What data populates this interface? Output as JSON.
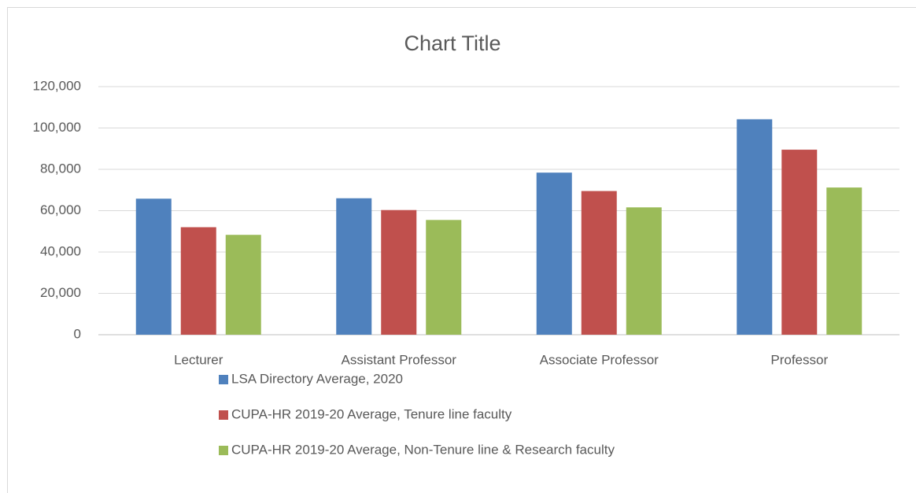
{
  "chart_data": {
    "type": "bar",
    "title": "Chart Title",
    "categories": [
      "Lecturer",
      "Assistant Professor",
      "Associate Professor",
      "Professor"
    ],
    "series": [
      {
        "name": "LSA Directory Average, 2020",
        "color": "#4f81bd",
        "values": [
          65800,
          66000,
          78400,
          104200
        ]
      },
      {
        "name": "CUPA-HR 2019-20 Average, Tenure line faculty",
        "color": "#c0504d",
        "values": [
          52000,
          60300,
          69500,
          89500
        ]
      },
      {
        "name": "CUPA-HR 2019-20 Average, Non-Tenure line & Research faculty",
        "color": "#9bbb59",
        "values": [
          48300,
          55500,
          61600,
          71200
        ]
      }
    ],
    "ylim": [
      0,
      120000
    ],
    "yticks": [
      0,
      {
        "value": 20000,
        "label": "20,000"
      },
      {
        "value": 40000,
        "label": "40,000"
      },
      {
        "value": 60000,
        "label": "60,000"
      },
      {
        "value": 80000,
        "label": "80,000"
      },
      {
        "value": 100000,
        "label": "100,000"
      },
      {
        "value": 120000,
        "label": "120,000"
      }
    ],
    "grid": true,
    "legend": "bottom"
  }
}
